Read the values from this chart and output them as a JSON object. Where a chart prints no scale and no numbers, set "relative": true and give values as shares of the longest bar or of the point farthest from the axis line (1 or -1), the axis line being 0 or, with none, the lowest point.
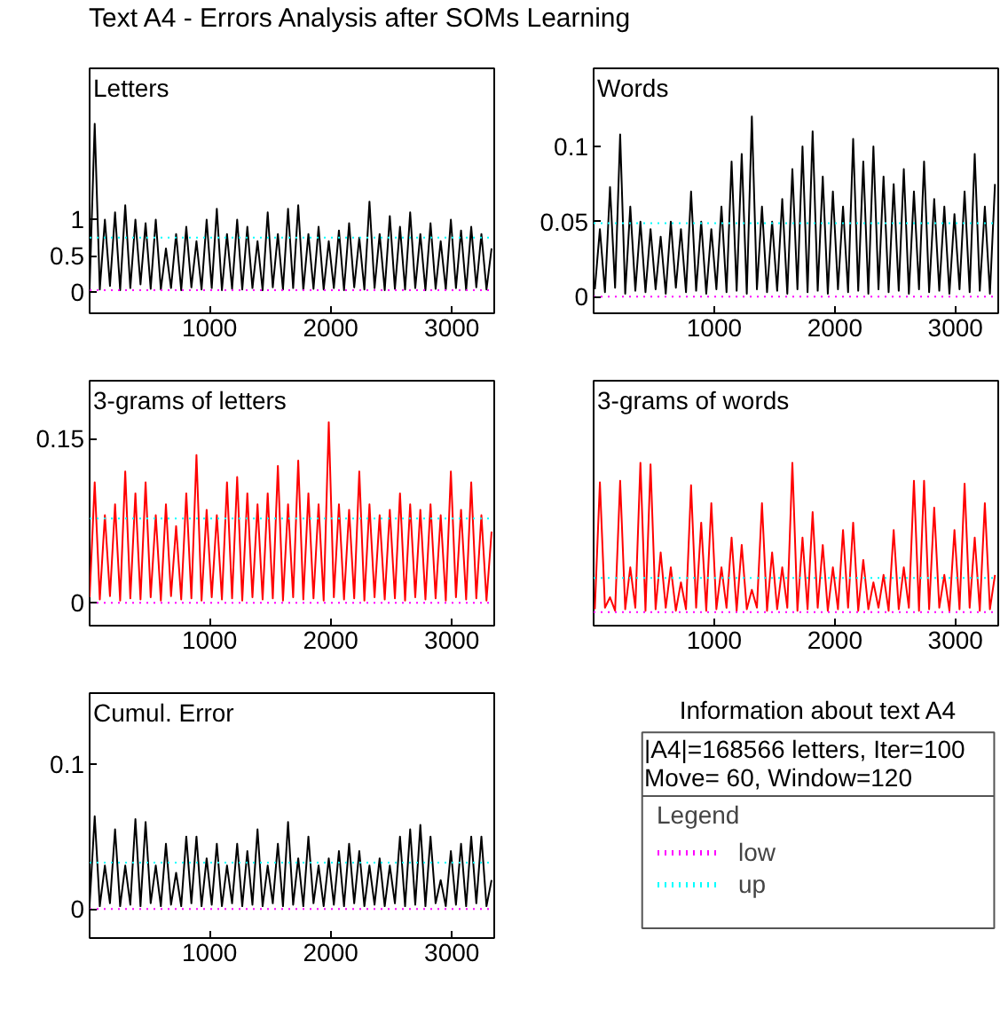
{
  "chart_data": [
    {
      "type": "line",
      "title": "Letters",
      "annotations": [
        "Text A4 - Errors Analysis after SOMs Learning"
      ],
      "xlim": [
        10,
        3350
      ],
      "xticks": [
        1000,
        2000,
        3000
      ],
      "ylim": [
        -0.3,
        3.1
      ],
      "yticks": [
        0,
        0.5,
        1
      ],
      "grid": false,
      "x": [
        10,
        52,
        94,
        136,
        178,
        220,
        262,
        304,
        346,
        388,
        430,
        472,
        514,
        556,
        598,
        640,
        682,
        724,
        766,
        808,
        850,
        892,
        934,
        976,
        1018,
        1060,
        1102,
        1144,
        1186,
        1228,
        1270,
        1312,
        1354,
        1396,
        1438,
        1480,
        1522,
        1564,
        1606,
        1648,
        1690,
        1732,
        1774,
        1816,
        1858,
        1900,
        1942,
        1984,
        2026,
        2068,
        2110,
        2152,
        2194,
        2236,
        2278,
        2320,
        2362,
        2404,
        2446,
        2488,
        2530,
        2572,
        2614,
        2656,
        2698,
        2740,
        2782,
        2824,
        2866,
        2908,
        2950,
        2992,
        3034,
        3076,
        3118,
        3160,
        3202,
        3244,
        3286,
        3328
      ],
      "series": [
        {
          "color": "#000000",
          "line_style": "solid",
          "values": [
            0.05,
            2.33,
            0.03,
            1.0,
            0.08,
            1.1,
            0.02,
            1.2,
            0.05,
            1.0,
            0.1,
            0.95,
            0.04,
            1.0,
            0.03,
            0.6,
            0.05,
            0.8,
            0.02,
            0.9,
            0.06,
            0.7,
            0.03,
            1.0,
            0.05,
            1.15,
            0.02,
            0.8,
            0.04,
            1.0,
            0.03,
            0.9,
            0.05,
            0.7,
            0.02,
            1.1,
            0.06,
            0.8,
            0.03,
            1.15,
            0.05,
            1.2,
            0.02,
            0.8,
            0.04,
            0.9,
            0.03,
            0.7,
            0.05,
            0.85,
            0.02,
            0.95,
            0.06,
            0.75,
            0.03,
            1.25,
            0.05,
            0.8,
            0.02,
            1.05,
            0.04,
            0.9,
            0.03,
            1.1,
            0.05,
            0.8,
            0.02,
            0.95,
            0.04,
            0.7,
            0.03,
            1.0,
            0.05,
            0.85,
            0.02,
            0.9,
            0.06,
            0.8,
            0.03,
            0.6
          ]
        },
        {
          "color": "#ff00ff",
          "line_style": "dotted",
          "x": [
            10,
            3350
          ],
          "values": [
            0.02,
            0.02
          ]
        },
        {
          "color": "#00ffff",
          "line_style": "dotted",
          "x": [
            10,
            3350
          ],
          "values": [
            0.75,
            0.75
          ]
        }
      ]
    },
    {
      "type": "line",
      "title": "Words",
      "xlim": [
        0,
        3355
      ],
      "xticks": [
        1000,
        2000,
        3000
      ],
      "ylim": [
        -0.011,
        0.152
      ],
      "yticks": [
        0,
        0.05,
        0.1
      ],
      "grid": false,
      "x": [
        10,
        52,
        94,
        136,
        178,
        220,
        262,
        304,
        346,
        388,
        430,
        472,
        514,
        556,
        598,
        640,
        682,
        724,
        766,
        808,
        850,
        892,
        934,
        976,
        1018,
        1060,
        1102,
        1144,
        1186,
        1228,
        1270,
        1312,
        1354,
        1396,
        1438,
        1480,
        1522,
        1564,
        1606,
        1648,
        1690,
        1732,
        1774,
        1816,
        1858,
        1900,
        1942,
        1984,
        2026,
        2068,
        2110,
        2152,
        2194,
        2236,
        2278,
        2320,
        2362,
        2404,
        2446,
        2488,
        2530,
        2572,
        2614,
        2656,
        2698,
        2740,
        2782,
        2824,
        2866,
        2908,
        2950,
        2992,
        3034,
        3076,
        3118,
        3160,
        3202,
        3244,
        3286,
        3328
      ],
      "series": [
        {
          "color": "#000000",
          "line_style": "solid",
          "values": [
            0.005,
            0.045,
            0.003,
            0.073,
            0.006,
            0.108,
            0.002,
            0.06,
            0.004,
            0.05,
            0.003,
            0.045,
            0.005,
            0.04,
            0.002,
            0.05,
            0.006,
            0.045,
            0.003,
            0.07,
            0.004,
            0.05,
            0.002,
            0.045,
            0.005,
            0.06,
            0.003,
            0.09,
            0.004,
            0.095,
            0.002,
            0.12,
            0.005,
            0.06,
            0.003,
            0.05,
            0.004,
            0.065,
            0.002,
            0.085,
            0.005,
            0.1,
            0.003,
            0.11,
            0.004,
            0.08,
            0.002,
            0.07,
            0.005,
            0.06,
            0.003,
            0.105,
            0.004,
            0.09,
            0.002,
            0.1,
            0.005,
            0.08,
            0.003,
            0.075,
            0.004,
            0.085,
            0.002,
            0.07,
            0.005,
            0.09,
            0.003,
            0.065,
            0.004,
            0.06,
            0.002,
            0.055,
            0.005,
            0.07,
            0.003,
            0.095,
            0.004,
            0.06,
            0.002,
            0.075
          ]
        },
        {
          "color": "#ff00ff",
          "line_style": "dotted",
          "x": [
            0,
            3355
          ],
          "values": [
            0.0,
            0.0
          ]
        },
        {
          "color": "#00ffff",
          "line_style": "dotted",
          "x": [
            0,
            3355
          ],
          "values": [
            0.049,
            0.049
          ]
        }
      ]
    },
    {
      "type": "line",
      "title": "3-grams of letters",
      "xlim": [
        10,
        3350
      ],
      "xticks": [
        1000,
        2000,
        3000
      ],
      "ylim": [
        -0.021,
        0.203
      ],
      "yticks": [
        0,
        0.15
      ],
      "grid": false,
      "x": [
        10,
        52,
        94,
        136,
        178,
        220,
        262,
        304,
        346,
        388,
        430,
        472,
        514,
        556,
        598,
        640,
        682,
        724,
        766,
        808,
        850,
        892,
        934,
        976,
        1018,
        1060,
        1102,
        1144,
        1186,
        1228,
        1270,
        1312,
        1354,
        1396,
        1438,
        1480,
        1522,
        1564,
        1606,
        1648,
        1690,
        1732,
        1774,
        1816,
        1858,
        1900,
        1942,
        1984,
        2026,
        2068,
        2110,
        2152,
        2194,
        2236,
        2278,
        2320,
        2362,
        2404,
        2446,
        2488,
        2530,
        2572,
        2614,
        2656,
        2698,
        2740,
        2782,
        2824,
        2866,
        2908,
        2950,
        2992,
        3034,
        3076,
        3118,
        3160,
        3202,
        3244,
        3286,
        3328
      ],
      "series": [
        {
          "color": "#ff0000",
          "line_style": "solid",
          "values": [
            0.005,
            0.11,
            0.003,
            0.08,
            0.006,
            0.09,
            0.002,
            0.12,
            0.004,
            0.1,
            0.003,
            0.11,
            0.005,
            0.08,
            0.002,
            0.09,
            0.006,
            0.07,
            0.003,
            0.1,
            0.004,
            0.135,
            0.002,
            0.085,
            0.005,
            0.08,
            0.003,
            0.11,
            0.004,
            0.115,
            0.002,
            0.1,
            0.005,
            0.09,
            0.003,
            0.1,
            0.004,
            0.125,
            0.002,
            0.09,
            0.005,
            0.13,
            0.003,
            0.1,
            0.004,
            0.09,
            0.002,
            0.165,
            0.005,
            0.09,
            0.003,
            0.085,
            0.004,
            0.12,
            0.002,
            0.09,
            0.005,
            0.08,
            0.003,
            0.085,
            0.004,
            0.1,
            0.002,
            0.09,
            0.005,
            0.085,
            0.003,
            0.09,
            0.004,
            0.08,
            0.002,
            0.12,
            0.005,
            0.085,
            0.003,
            0.11,
            0.004,
            0.08,
            0.002,
            0.065
          ]
        },
        {
          "color": "#ff00ff",
          "line_style": "dotted",
          "x": [
            10,
            3350
          ],
          "values": [
            0.0,
            0.0
          ]
        },
        {
          "color": "#00ffff",
          "line_style": "dotted",
          "x": [
            10,
            3350
          ],
          "values": [
            0.077,
            0.077
          ]
        }
      ]
    },
    {
      "type": "line",
      "title": "3-grams of words",
      "relative": true,
      "annotations": [
        "0"
      ],
      "xlim": [
        0,
        3355
      ],
      "xticks": [
        1000,
        2000,
        3000
      ],
      "grid": false,
      "x": [
        10,
        52,
        94,
        136,
        178,
        220,
        262,
        304,
        346,
        388,
        430,
        472,
        514,
        556,
        598,
        640,
        682,
        724,
        766,
        808,
        850,
        892,
        934,
        976,
        1018,
        1060,
        1102,
        1144,
        1186,
        1228,
        1270,
        1312,
        1354,
        1396,
        1438,
        1480,
        1522,
        1564,
        1606,
        1648,
        1690,
        1732,
        1774,
        1816,
        1858,
        1900,
        1942,
        1984,
        2026,
        2068,
        2110,
        2152,
        2194,
        2236,
        2278,
        2320,
        2362,
        2404,
        2446,
        2488,
        2530,
        2572,
        2614,
        2656,
        2698,
        2740,
        2782,
        2824,
        2866,
        2908,
        2950,
        2992,
        3034,
        3076,
        3118,
        3160,
        3202,
        3244,
        3286,
        3328
      ],
      "series": [
        {
          "color": "#ff0000",
          "line_style": "solid",
          "values": [
            0.02,
            0.87,
            0.03,
            0.1,
            0.01,
            0.88,
            0.02,
            0.3,
            0.03,
            1.0,
            0.01,
            0.99,
            0.02,
            0.4,
            0.03,
            0.3,
            0.01,
            0.2,
            0.02,
            0.85,
            0.03,
            0.6,
            0.01,
            0.73,
            0.02,
            0.3,
            0.03,
            0.5,
            0.01,
            0.45,
            0.02,
            0.15,
            0.03,
            0.73,
            0.01,
            0.4,
            0.02,
            0.3,
            0.03,
            1.0,
            0.01,
            0.5,
            0.02,
            0.67,
            0.03,
            0.45,
            0.01,
            0.3,
            0.02,
            0.55,
            0.03,
            0.6,
            0.01,
            0.35,
            0.02,
            0.2,
            0.03,
            0.25,
            0.01,
            0.55,
            0.02,
            0.3,
            0.03,
            0.88,
            0.01,
            0.88,
            0.02,
            0.7,
            0.03,
            0.25,
            0.01,
            0.55,
            0.02,
            0.86,
            0.03,
            0.5,
            0.01,
            0.73,
            0.02,
            0.25
          ]
        },
        {
          "color": "#ff00ff",
          "line_style": "dotted",
          "x": [
            0,
            3355
          ],
          "values": [
            0.0,
            0.0
          ]
        },
        {
          "color": "#00ffff",
          "line_style": "dotted",
          "x": [
            0,
            3355
          ],
          "values": [
            0.23,
            0.23
          ]
        }
      ]
    },
    {
      "type": "line",
      "title": "Cumul. Error",
      "xlim": [
        10,
        3350
      ],
      "xticks": [
        1000,
        2000,
        3000
      ],
      "ylim": [
        -0.02,
        0.149
      ],
      "yticks": [
        0,
        0.1
      ],
      "grid": false,
      "x": [
        10,
        52,
        94,
        136,
        178,
        220,
        262,
        304,
        346,
        388,
        430,
        472,
        514,
        556,
        598,
        640,
        682,
        724,
        766,
        808,
        850,
        892,
        934,
        976,
        1018,
        1060,
        1102,
        1144,
        1186,
        1228,
        1270,
        1312,
        1354,
        1396,
        1438,
        1480,
        1522,
        1564,
        1606,
        1648,
        1690,
        1732,
        1774,
        1816,
        1858,
        1900,
        1942,
        1984,
        2026,
        2068,
        2110,
        2152,
        2194,
        2236,
        2278,
        2320,
        2362,
        2404,
        2446,
        2488,
        2530,
        2572,
        2614,
        2656,
        2698,
        2740,
        2782,
        2824,
        2866,
        2908,
        2950,
        2992,
        3034,
        3076,
        3118,
        3160,
        3202,
        3244,
        3286,
        3328
      ],
      "series": [
        {
          "color": "#000000",
          "line_style": "solid",
          "values": [
            0.003,
            0.064,
            0.002,
            0.03,
            0.004,
            0.055,
            0.002,
            0.03,
            0.003,
            0.062,
            0.002,
            0.06,
            0.004,
            0.03,
            0.002,
            0.045,
            0.003,
            0.025,
            0.002,
            0.05,
            0.004,
            0.05,
            0.002,
            0.035,
            0.003,
            0.045,
            0.002,
            0.03,
            0.004,
            0.045,
            0.002,
            0.04,
            0.003,
            0.055,
            0.002,
            0.03,
            0.004,
            0.045,
            0.002,
            0.06,
            0.003,
            0.035,
            0.002,
            0.05,
            0.004,
            0.03,
            0.002,
            0.035,
            0.003,
            0.04,
            0.002,
            0.045,
            0.004,
            0.04,
            0.002,
            0.03,
            0.003,
            0.035,
            0.002,
            0.03,
            0.004,
            0.05,
            0.002,
            0.055,
            0.003,
            0.058,
            0.002,
            0.05,
            0.004,
            0.02,
            0.002,
            0.04,
            0.003,
            0.045,
            0.002,
            0.05,
            0.004,
            0.05,
            0.002,
            0.02
          ]
        },
        {
          "color": "#ff00ff",
          "line_style": "dotted",
          "x": [
            10,
            3350
          ],
          "values": [
            0.0,
            0.0
          ]
        },
        {
          "color": "#00ffff",
          "line_style": "dotted",
          "x": [
            10,
            3350
          ],
          "values": [
            0.032,
            0.032
          ]
        }
      ]
    },
    {
      "type": "other",
      "title": "Information about text A4",
      "annotations": [
        "|A4|=168566 letters, Iter=100",
        "Move= 60, Window=120"
      ],
      "legend_title": "Legend",
      "legend": "bottom",
      "series": [
        {
          "name": "low",
          "color": "#ff00ff",
          "line_style": "dotted"
        },
        {
          "name": "up",
          "color": "#00ffff",
          "line_style": "dotted"
        }
      ]
    }
  ]
}
